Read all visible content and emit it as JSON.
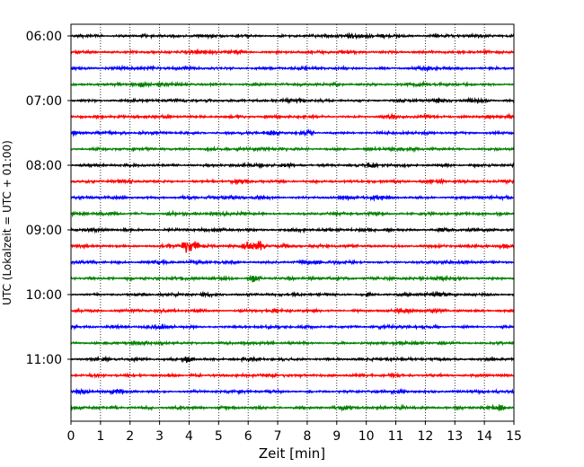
{
  "chart_data": {
    "type": "line",
    "title": "",
    "xlabel": "Zeit  [min]",
    "ylabel": "UTC (Lokalzeit = UTC + 01:00)",
    "xlim": [
      0,
      15
    ],
    "xticks": [
      0,
      1,
      2,
      3,
      4,
      5,
      6,
      7,
      8,
      9,
      10,
      11,
      12,
      13,
      14,
      15
    ],
    "grid": "vertical dotted",
    "row_minutes": 15,
    "yticks": [
      "06:00",
      "07:00",
      "08:00",
      "09:00",
      "10:00",
      "11:00"
    ],
    "trace_colors": [
      "#000000",
      "#ff0000",
      "#0000ff",
      "#008000"
    ],
    "rows": [
      {
        "start": "06:00"
      },
      {
        "start": "06:15"
      },
      {
        "start": "06:30"
      },
      {
        "start": "06:45"
      },
      {
        "start": "07:00"
      },
      {
        "start": "07:15"
      },
      {
        "start": "07:30"
      },
      {
        "start": "07:45"
      },
      {
        "start": "08:00"
      },
      {
        "start": "08:15"
      },
      {
        "start": "08:30"
      },
      {
        "start": "08:45"
      },
      {
        "start": "09:00"
      },
      {
        "start": "09:15",
        "events": [
          [
            3.9,
            2.4
          ],
          [
            4.2,
            1.6
          ],
          [
            6.4,
            2.0
          ],
          [
            6.0,
            1.5
          ]
        ]
      },
      {
        "start": "09:30"
      },
      {
        "start": "09:45",
        "events": [
          [
            6.2,
            1.8
          ]
        ]
      },
      {
        "start": "10:00"
      },
      {
        "start": "10:15"
      },
      {
        "start": "10:30"
      },
      {
        "start": "10:45"
      },
      {
        "start": "11:00",
        "events": [
          [
            4.0,
            1.6
          ]
        ]
      },
      {
        "start": "11:15"
      },
      {
        "start": "11:30"
      },
      {
        "start": "11:45"
      }
    ]
  }
}
